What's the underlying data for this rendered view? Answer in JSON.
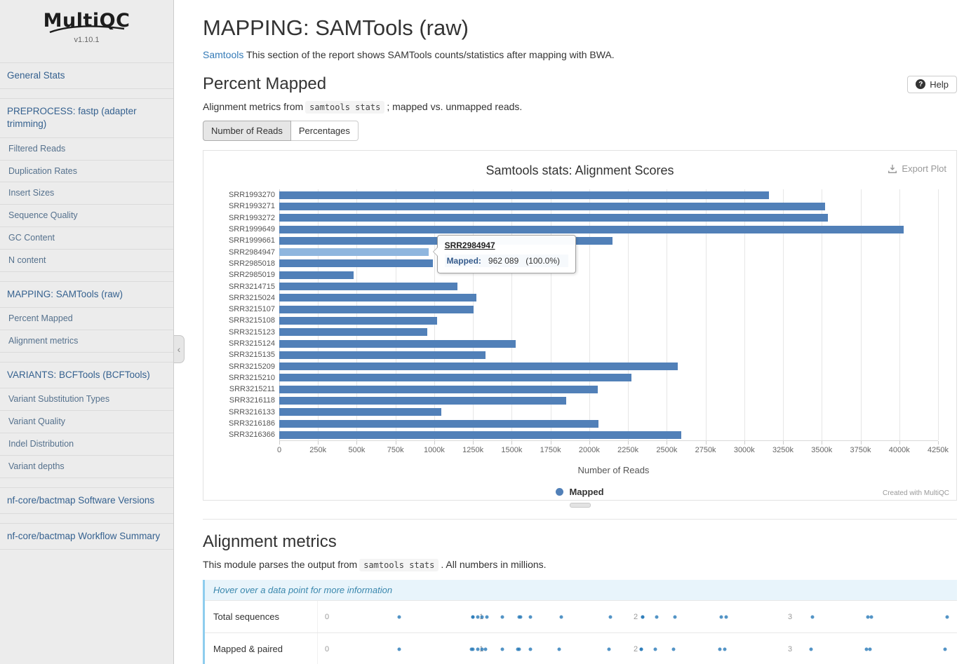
{
  "sidebar": {
    "logo_text": "MultiQC",
    "version": "v1.10.1",
    "collapse_icon": "‹",
    "groups": [
      {
        "items": [
          {
            "label": "General Stats",
            "type": "section"
          }
        ]
      },
      {
        "items": [
          {
            "label": "PREPROCESS: fastp (adapter trimming)",
            "type": "section"
          },
          {
            "label": "Filtered Reads",
            "type": "sub"
          },
          {
            "label": "Duplication Rates",
            "type": "sub"
          },
          {
            "label": "Insert Sizes",
            "type": "sub"
          },
          {
            "label": "Sequence Quality",
            "type": "sub"
          },
          {
            "label": "GC Content",
            "type": "sub"
          },
          {
            "label": "N content",
            "type": "sub"
          }
        ]
      },
      {
        "items": [
          {
            "label": "MAPPING: SAMTools (raw)",
            "type": "section"
          },
          {
            "label": "Percent Mapped",
            "type": "sub"
          },
          {
            "label": "Alignment metrics",
            "type": "sub"
          }
        ]
      },
      {
        "items": [
          {
            "label": "VARIANTS: BCFTools (BCFTools)",
            "type": "section"
          },
          {
            "label": "Variant Substitution Types",
            "type": "sub"
          },
          {
            "label": "Variant Quality",
            "type": "sub"
          },
          {
            "label": "Indel Distribution",
            "type": "sub"
          },
          {
            "label": "Variant depths",
            "type": "sub"
          }
        ]
      },
      {
        "items": [
          {
            "label": "nf-core/bactmap Software Versions",
            "type": "section"
          }
        ]
      },
      {
        "items": [
          {
            "label": "nf-core/bactmap Workflow Summary",
            "type": "section"
          }
        ]
      }
    ]
  },
  "page": {
    "title": "MAPPING: SAMTools (raw)",
    "intro_link": "Samtools",
    "intro_text": " This section of the report shows SAMTools counts/statistics after mapping with BWA."
  },
  "percent_mapped": {
    "heading": "Percent Mapped",
    "help_label": "Help",
    "help_icon_glyph": "?",
    "desc_prefix": "Alignment metrics from",
    "desc_code": "samtools stats",
    "desc_suffix": "; mapped vs. unmapped reads.",
    "tabs": [
      {
        "label": "Number of Reads",
        "active": true
      },
      {
        "label": "Percentages",
        "active": false
      }
    ],
    "export_label": "Export Plot",
    "credit": "Created with MultiQC"
  },
  "chart_data": {
    "type": "bar",
    "orientation": "horizontal",
    "title": "Samtools stats: Alignment Scores",
    "xlabel": "Number of Reads",
    "xlim": [
      0,
      4250000
    ],
    "x_ticks": [
      "0",
      "250k",
      "500k",
      "750k",
      "1000k",
      "1250k",
      "1500k",
      "1750k",
      "2000k",
      "2250k",
      "2500k",
      "2750k",
      "3000k",
      "3250k",
      "3500k",
      "3750k",
      "4000k",
      "4250k"
    ],
    "legend": [
      {
        "name": "Mapped",
        "color": "#5180b8"
      }
    ],
    "categories": [
      "SRR1993270",
      "SRR1993271",
      "SRR1993272",
      "SRR1999649",
      "SRR1999661",
      "SRR2984947",
      "SRR2985018",
      "SRR2985019",
      "SRR3214715",
      "SRR3215024",
      "SRR3215107",
      "SRR3215108",
      "SRR3215123",
      "SRR3215124",
      "SRR3215135",
      "SRR3215209",
      "SRR3215210",
      "SRR3215211",
      "SRR3216118",
      "SRR3216133",
      "SRR3216186",
      "SRR3216366"
    ],
    "values": [
      3160000,
      3520000,
      3540000,
      4030000,
      2150000,
      962089,
      990000,
      480000,
      1150000,
      1270000,
      1255000,
      1020000,
      955000,
      1525000,
      1330000,
      2570000,
      2270000,
      2055000,
      1850000,
      1045000,
      2060000,
      2595000
    ],
    "highlighted_sample": "SRR2984947",
    "tooltip": {
      "sample": "SRR2984947",
      "series": "Mapped:",
      "value": "962 089",
      "percent": "(100.0%)"
    }
  },
  "alignment_metrics": {
    "heading": "Alignment metrics",
    "desc_prefix": "This module parses the output from",
    "desc_code": "samtools stats",
    "desc_suffix": ". All numbers in millions.",
    "hover_note": "Hover over a data point for more information",
    "dot_color": "#2879b8",
    "axis": {
      "min": 0,
      "display_max": 4.05,
      "ticks": [
        "0",
        "1",
        "2",
        "3"
      ]
    },
    "rows": [
      {
        "label": "Total sequences",
        "values_millions": [
          3.16,
          3.52,
          3.54,
          4.03,
          2.15,
          0.96,
          0.99,
          0.48,
          1.15,
          1.27,
          1.26,
          1.02,
          0.96,
          1.53,
          1.33,
          2.57,
          2.27,
          2.06,
          1.85,
          1.05,
          2.06,
          2.6
        ]
      },
      {
        "label": "Mapped & paired",
        "values_millions": [
          3.15,
          3.51,
          3.53,
          4.02,
          2.14,
          0.96,
          0.99,
          0.48,
          1.15,
          1.26,
          1.25,
          1.02,
          0.95,
          1.52,
          1.33,
          2.56,
          2.26,
          2.05,
          1.84,
          1.04,
          2.05,
          2.59
        ]
      }
    ]
  }
}
